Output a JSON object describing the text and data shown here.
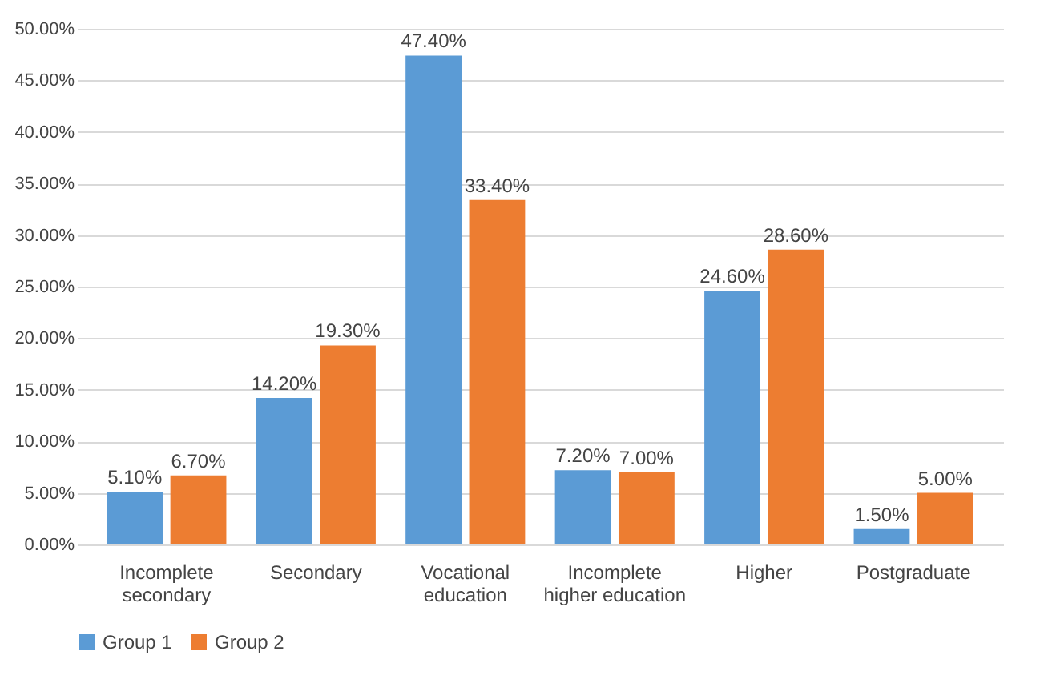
{
  "chart_data": {
    "type": "bar",
    "categories": [
      "Incomplete secondary",
      "Secondary",
      "Vocational education",
      "Incomplete higher education",
      "Higher",
      "Postgraduate"
    ],
    "series": [
      {
        "name": "Group 1",
        "color": "#5b9bd5",
        "values": [
          5.1,
          14.2,
          47.4,
          7.2,
          24.6,
          1.5
        ],
        "value_labels": [
          "5.10%",
          "14.20%",
          "47.40%",
          "7.20%",
          "24.60%",
          "1.50%"
        ]
      },
      {
        "name": "Group 2",
        "color": "#ed7d31",
        "values": [
          6.7,
          19.3,
          33.4,
          7.0,
          28.6,
          5.0
        ],
        "value_labels": [
          "6.70%",
          "19.30%",
          "33.40%",
          "7.00%",
          "28.60%",
          "5.00%"
        ]
      }
    ],
    "ylim": [
      0,
      50
    ],
    "yticks": [
      {
        "value": 0,
        "label": "0.00%"
      },
      {
        "value": 5,
        "label": "5.00%"
      },
      {
        "value": 10,
        "label": "10.00%"
      },
      {
        "value": 15,
        "label": "15.00%"
      },
      {
        "value": 20,
        "label": "20.00%"
      },
      {
        "value": 25,
        "label": "25.00%"
      },
      {
        "value": 30,
        "label": "30.00%"
      },
      {
        "value": 35,
        "label": "35.00%"
      },
      {
        "value": 40,
        "label": "40.00%"
      },
      {
        "value": 45,
        "label": "45.00%"
      },
      {
        "value": 50,
        "label": "50.00%"
      }
    ],
    "grid": "y",
    "legend": "bottom"
  }
}
